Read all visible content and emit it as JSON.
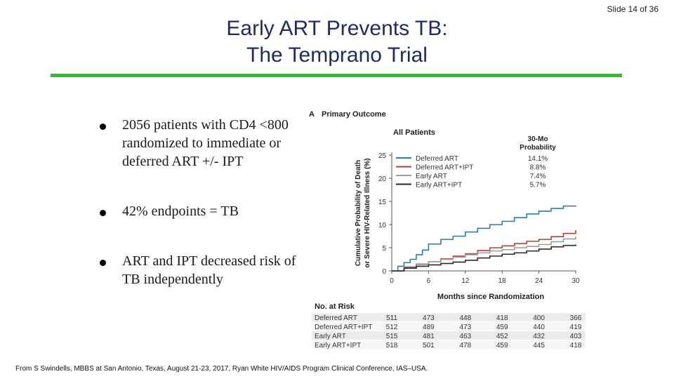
{
  "slide": {
    "number_label": "Slide 14 of 36"
  },
  "title": {
    "line1": "Early ART Prevents TB:",
    "line2": "The Temprano Trial"
  },
  "bullets": [
    "2056 patients with CD4 <800 randomized to immediate or deferred ART +/- IPT",
    "42% endpoints = TB",
    "ART and IPT decreased risk of TB independently"
  ],
  "footer": "From S Swindells, MBBS at San Antonio, Texas, August 21-23, 2017, Ryan White HIV/AIDS Program Clinical Conference, IAS–USA.",
  "colors": {
    "title": "#1f2a6b",
    "rule": "#2fbf2f"
  },
  "chart_data": {
    "type": "line",
    "panel_letter": "A",
    "title": "Primary Outcome",
    "subtitle": "All Patients",
    "ylabel": "Cumulative Probability of Death or Severe HIV-Related Illness (%)",
    "xlabel": "Months since Randomization",
    "xlim": [
      0,
      30
    ],
    "ylim": [
      0,
      25
    ],
    "xticks": [
      0,
      6,
      12,
      18,
      24,
      30
    ],
    "yticks": [
      0,
      5,
      10,
      15,
      20,
      25
    ],
    "legend_title": "30-Mo Probability",
    "series": [
      {
        "name": "Deferred ART",
        "probability": "14.1%",
        "color": "#2f7cb0",
        "x": [
          0,
          1,
          2,
          3,
          4,
          5,
          6,
          8,
          10,
          12,
          14,
          16,
          18,
          20,
          22,
          24,
          26,
          28,
          30
        ],
        "y": [
          0,
          1.0,
          1.8,
          2.5,
          3.5,
          4.5,
          5.8,
          6.8,
          7.5,
          8.4,
          9.2,
          10.0,
          10.7,
          11.5,
          12.3,
          12.9,
          13.5,
          14.0,
          14.1
        ]
      },
      {
        "name": "Deferred ART+IPT",
        "probability": "8.8%",
        "color": "#b5413a",
        "x": [
          0,
          2,
          4,
          6,
          8,
          10,
          12,
          14,
          16,
          18,
          20,
          22,
          24,
          26,
          28,
          30
        ],
        "y": [
          0,
          0.8,
          1.4,
          2.0,
          2.6,
          3.2,
          3.7,
          4.4,
          5.0,
          5.4,
          5.9,
          6.4,
          6.8,
          7.4,
          8.1,
          8.8
        ]
      },
      {
        "name": "Early ART",
        "probability": "7.4%",
        "color": "#9c9c9c",
        "x": [
          0,
          2,
          4,
          6,
          8,
          10,
          12,
          14,
          16,
          18,
          20,
          22,
          24,
          26,
          28,
          30
        ],
        "y": [
          0,
          0.9,
          1.5,
          2.0,
          2.5,
          3.0,
          3.5,
          3.9,
          4.3,
          4.6,
          5.0,
          5.3,
          5.7,
          6.3,
          6.9,
          7.4
        ]
      },
      {
        "name": "Early ART+IPT",
        "probability": "5.7%",
        "color": "#2a2a2a",
        "x": [
          0,
          2,
          4,
          6,
          8,
          10,
          12,
          14,
          16,
          18,
          20,
          22,
          24,
          26,
          28,
          30
        ],
        "y": [
          0,
          0.6,
          1.0,
          1.3,
          1.6,
          1.9,
          2.3,
          2.8,
          3.2,
          3.6,
          3.9,
          4.3,
          4.7,
          5.2,
          5.5,
          5.7
        ]
      }
    ],
    "risk_table": {
      "title": "No. at Risk",
      "rows": [
        {
          "label": "Deferred ART",
          "values": [
            511,
            473,
            448,
            418,
            400,
            366
          ]
        },
        {
          "label": "Deferred ART+IPT",
          "values": [
            512,
            489,
            473,
            459,
            440,
            419
          ]
        },
        {
          "label": "Early ART",
          "values": [
            515,
            481,
            463,
            452,
            432,
            403
          ]
        },
        {
          "label": "Early ART+IPT",
          "values": [
            518,
            501,
            478,
            459,
            445,
            418
          ]
        }
      ]
    }
  }
}
